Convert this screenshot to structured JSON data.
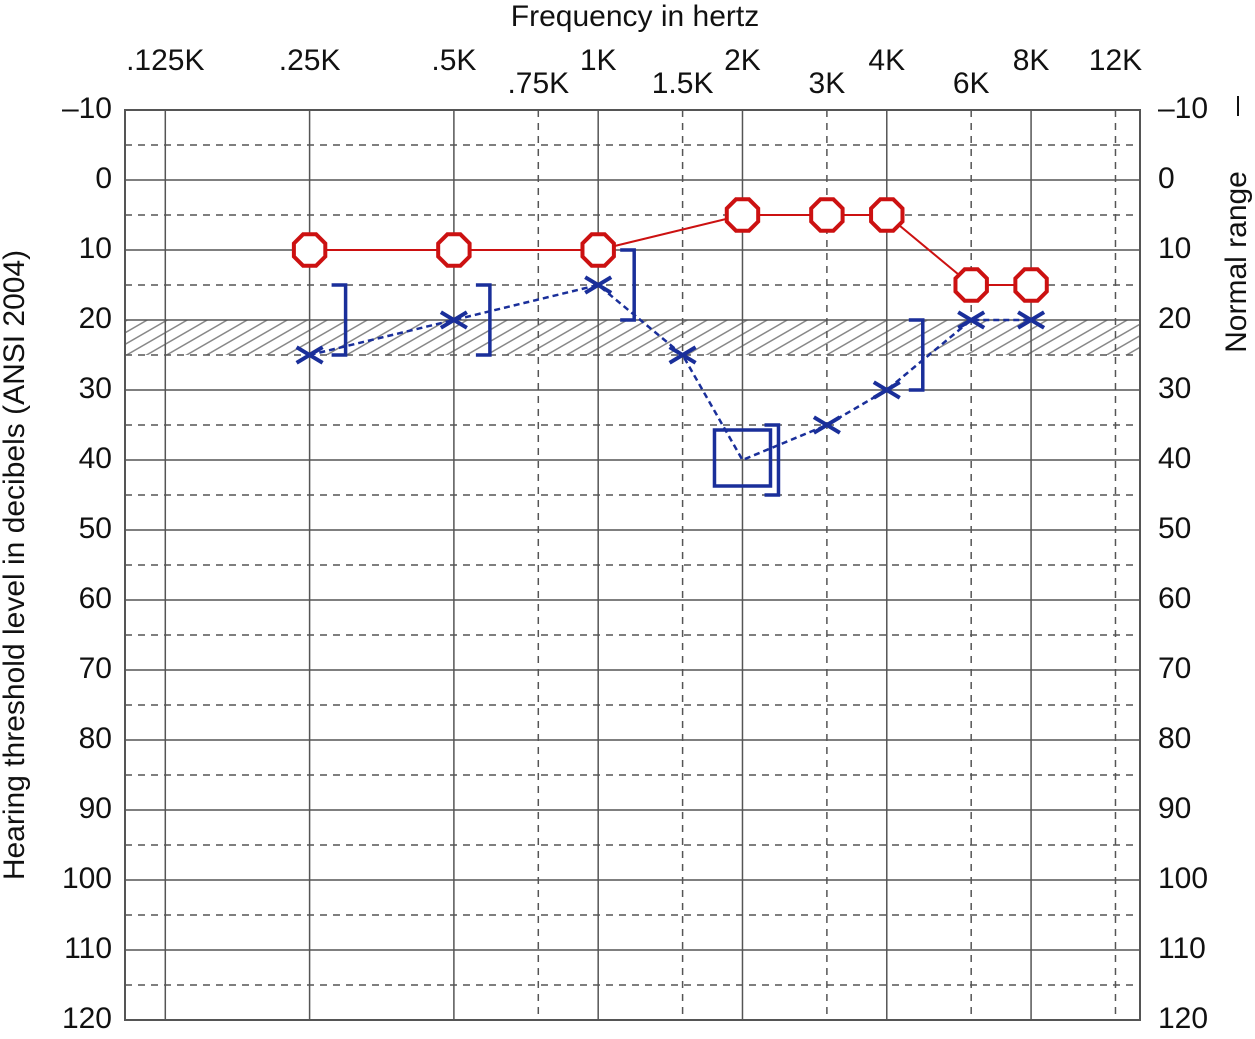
{
  "chart_data": {
    "type": "audiogram",
    "title": "Frequency in hertz",
    "y_label": "Hearing threshold level in decibels (ANSI 2004)",
    "y2_label": "Normal range",
    "log_x": true,
    "xlim": [
      103,
      13500
    ],
    "xticks": [
      {
        "value": 125,
        "label": ".125K"
      },
      {
        "value": 250,
        "label": ".25K"
      },
      {
        "value": 500,
        "label": ".5K"
      },
      {
        "value": 750,
        "label": ".75K"
      },
      {
        "value": 1000,
        "label": "1K"
      },
      {
        "value": 1500,
        "label": "1.5K"
      },
      {
        "value": 2000,
        "label": "2K"
      },
      {
        "value": 3000,
        "label": "3K"
      },
      {
        "value": 4000,
        "label": "4K"
      },
      {
        "value": 6000,
        "label": "6K"
      },
      {
        "value": 8000,
        "label": "8K"
      },
      {
        "value": 12000,
        "label": "12K"
      }
    ],
    "ylim": [
      120,
      -10
    ],
    "yticks": [
      {
        "value": -10,
        "label": "–10"
      },
      0,
      10,
      20,
      30,
      40,
      50,
      60,
      70,
      80,
      90,
      100,
      110,
      120
    ],
    "normal_band": [
      20,
      25
    ],
    "series": [
      {
        "color": "#cc1111",
        "line": "solid",
        "x": [
          250,
          500,
          1000,
          2000,
          3000,
          4000,
          6000,
          8000
        ],
        "values": [
          10,
          10,
          10,
          5,
          5,
          5,
          15,
          15
        ],
        "markers": [
          "circle",
          "circle",
          "circle",
          "circle",
          "circle",
          "circle",
          "circle",
          "circle"
        ]
      },
      {
        "color": "#1a2f9a",
        "line": "dashed",
        "x": [
          250,
          500,
          1000,
          1500,
          2000,
          3000,
          4000,
          6000,
          8000
        ],
        "values": [
          25,
          20,
          15,
          25,
          40,
          35,
          30,
          20,
          20
        ],
        "markers": [
          "x",
          "x",
          "x",
          "x",
          "square",
          "x",
          "x",
          "x",
          "x"
        ]
      },
      {
        "color": "#1a2f9a",
        "line": "none",
        "x": [
          250,
          500,
          1000,
          2000,
          4000
        ],
        "values": [
          20,
          20,
          15,
          40,
          25
        ],
        "markers": [
          "bracket",
          "bracket",
          "bracket",
          "bracket",
          "bracket"
        ]
      }
    ]
  }
}
